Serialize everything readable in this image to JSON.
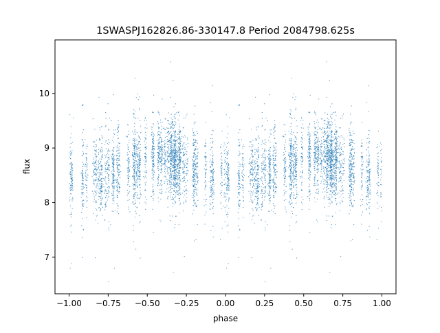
{
  "chart_data": {
    "type": "scatter",
    "title": "1SWASPJ162826.86-330147.8 Period 2084798.625s",
    "xlabel": "phase",
    "ylabel": "flux",
    "xlim": [
      -1.09,
      1.09
    ],
    "ylim": [
      6.33,
      10.98
    ],
    "xticks": [
      -1.0,
      -0.75,
      -0.5,
      -0.25,
      0.0,
      0.25,
      0.5,
      0.75,
      1.0
    ],
    "xtick_labels": [
      "−1.00",
      "−0.75",
      "−0.50",
      "−0.25",
      "0.00",
      "0.25",
      "0.50",
      "0.75",
      "1.00"
    ],
    "yticks": [
      7,
      8,
      9,
      10
    ],
    "ytick_labels": [
      "7",
      "8",
      "9",
      "10"
    ],
    "grid": false,
    "color": "#1f77b4",
    "folded_twice": true,
    "mean_flux_profile": {
      "phase": [
        0.0,
        0.1,
        0.2,
        0.3,
        0.4,
        0.5,
        0.55,
        0.6,
        0.7,
        0.8,
        0.9,
        1.0
      ],
      "flux": [
        8.5,
        8.45,
        8.5,
        8.55,
        8.65,
        8.8,
        8.85,
        8.85,
        8.75,
        8.6,
        8.5,
        8.5
      ]
    },
    "flux_scatter_sd": 0.35,
    "flux_range": [
      6.55,
      10.75
    ]
  }
}
